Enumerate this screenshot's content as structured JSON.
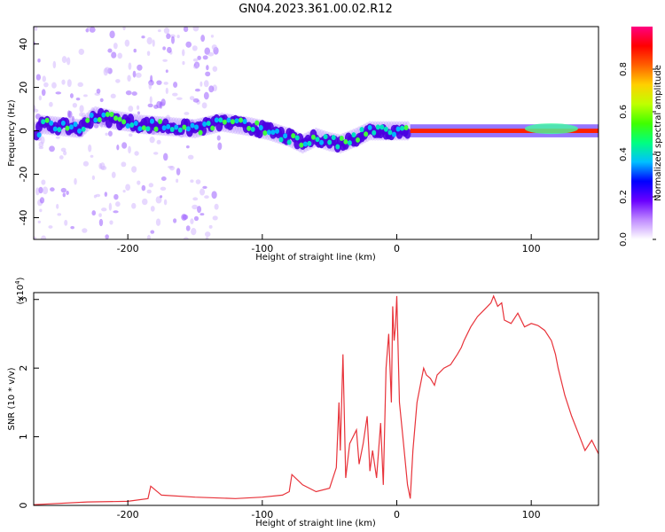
{
  "title": "GN04.2023.361.00.02.R12",
  "chart_data": [
    {
      "type": "heatmap",
      "xlabel": "Height of straight line (km)",
      "ylabel": "Frequency (Hz)",
      "xlim": [
        -270,
        150
      ],
      "ylim": [
        -50,
        48
      ],
      "xticks": [
        "-200",
        "-100",
        "0",
        "100"
      ],
      "yticks": [
        "-40",
        "-20",
        "0",
        "20",
        "40"
      ],
      "colorbar": {
        "label": "Normalized spectral amplitude",
        "range": [
          0,
          1
        ],
        "ticks": [
          "0.0",
          "0.2",
          "0.4",
          "0.6",
          "0.8"
        ],
        "colors": [
          "#ffffff",
          "#c08cff",
          "#6a00ff",
          "#0000ff",
          "#00c0ff",
          "#00ff80",
          "#40ff00",
          "#c0ff00",
          "#ffd000",
          "#ff6000",
          "#ff0000",
          "#ff0080"
        ]
      },
      "ridge": [
        {
          "x": -265,
          "y": 3
        },
        {
          "x": -250,
          "y": 2
        },
        {
          "x": -235,
          "y": 1
        },
        {
          "x": -225,
          "y": 7
        },
        {
          "x": -210,
          "y": 5
        },
        {
          "x": -190,
          "y": 3
        },
        {
          "x": -170,
          "y": 2
        },
        {
          "x": -150,
          "y": 1
        },
        {
          "x": -130,
          "y": 4
        },
        {
          "x": -110,
          "y": 2
        },
        {
          "x": -95,
          "y": 0
        },
        {
          "x": -80,
          "y": -3
        },
        {
          "x": -70,
          "y": -6
        },
        {
          "x": -60,
          "y": -3
        },
        {
          "x": -50,
          "y": -5
        },
        {
          "x": -42,
          "y": -6
        },
        {
          "x": -30,
          "y": -3
        },
        {
          "x": -20,
          "y": 0
        },
        {
          "x": -10,
          "y": 0
        },
        {
          "x": 0,
          "y": 0
        },
        {
          "x": 10,
          "y": 0
        },
        {
          "x": 150,
          "y": 0
        }
      ]
    },
    {
      "type": "line",
      "xlabel": "Height of straight line (km)",
      "ylabel": "SNR (10 * v/v)",
      "yscale_label": "(x10",
      "yscale_exponent": "4",
      "xlim": [
        -270,
        150
      ],
      "ylim": [
        0,
        3.1
      ],
      "xticks": [
        "-200",
        "-100",
        "0",
        "100"
      ],
      "yticks": [
        "0",
        "1",
        "2",
        "3"
      ],
      "series": [
        {
          "color": "#e8333a",
          "x": [
            -270,
            -230,
            -200,
            -185,
            -183,
            -175,
            -150,
            -120,
            -100,
            -85,
            -80,
            -78,
            -70,
            -60,
            -50,
            -45,
            -43,
            -42,
            -40,
            -38,
            -35,
            -30,
            -28,
            -25,
            -22,
            -20,
            -18,
            -15,
            -12,
            -10,
            -8,
            -6,
            -4,
            -3,
            -2,
            -1,
            0,
            2,
            5,
            8,
            10,
            12,
            15,
            18,
            20,
            22,
            25,
            28,
            30,
            35,
            40,
            45,
            48,
            50,
            55,
            60,
            65,
            70,
            72,
            75,
            78,
            80,
            85,
            90,
            95,
            100,
            105,
            110,
            115,
            118,
            120,
            125,
            130,
            135,
            140,
            145,
            150
          ],
          "values": [
            0.01,
            0.05,
            0.06,
            0.1,
            0.28,
            0.15,
            0.12,
            0.1,
            0.12,
            0.15,
            0.2,
            0.45,
            0.3,
            0.2,
            0.25,
            0.55,
            1.5,
            0.8,
            2.2,
            0.4,
            0.9,
            1.1,
            0.6,
            0.9,
            1.3,
            0.5,
            0.8,
            0.4,
            1.2,
            0.3,
            2.0,
            2.5,
            1.5,
            2.9,
            2.4,
            2.6,
            3.05,
            1.5,
            0.9,
            0.3,
            0.1,
            0.8,
            1.5,
            1.8,
            2.0,
            1.9,
            1.85,
            1.75,
            1.9,
            2.0,
            2.05,
            2.2,
            2.3,
            2.4,
            2.6,
            2.75,
            2.85,
            2.95,
            3.05,
            2.9,
            2.95,
            2.7,
            2.65,
            2.8,
            2.6,
            2.65,
            2.62,
            2.55,
            2.4,
            2.2,
            2.0,
            1.6,
            1.3,
            1.05,
            0.8,
            0.95,
            0.75
          ]
        }
      ]
    }
  ]
}
